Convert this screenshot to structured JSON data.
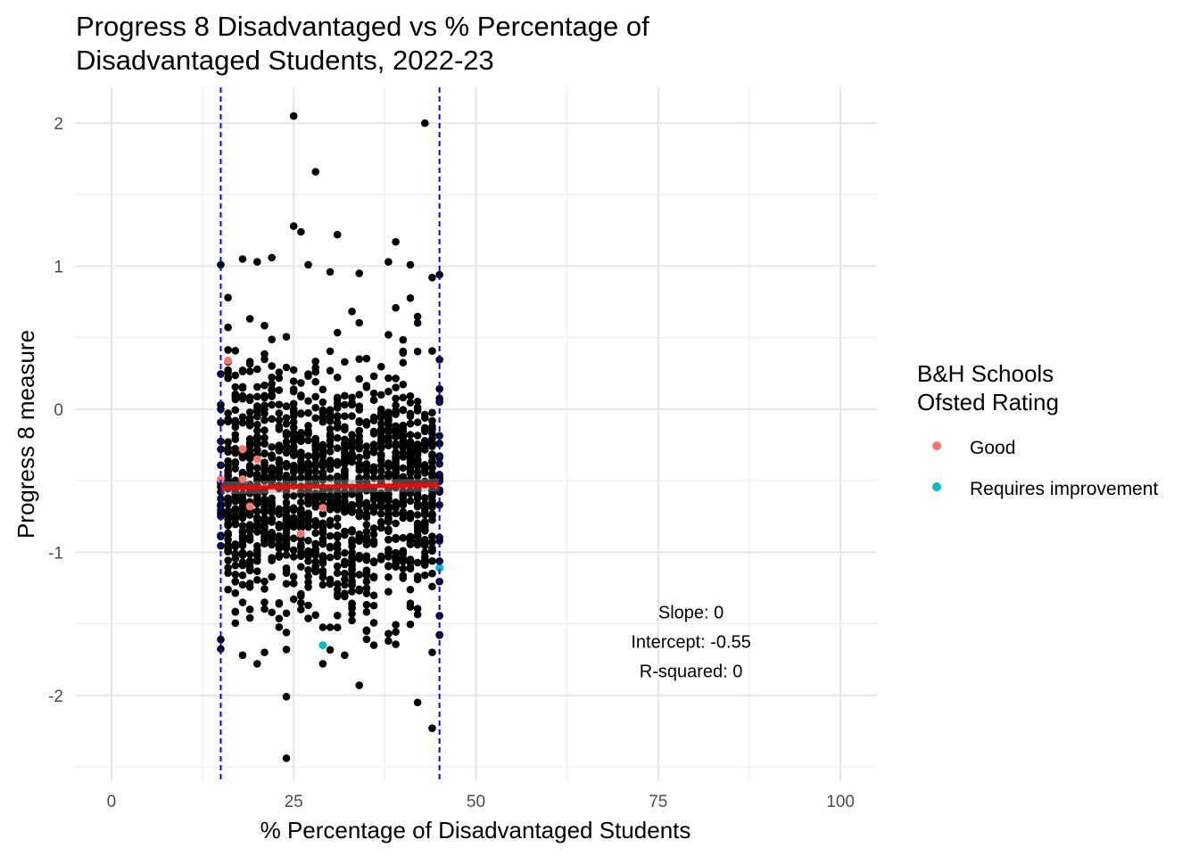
{
  "chart_data": {
    "type": "scatter",
    "title": [
      "Progress 8 Disadvantaged vs % Percentage of",
      "Disadvantaged Students, 2022-23"
    ],
    "xlabel": "% Percentage of Disadvantaged Students",
    "ylabel": "Progress 8 measure",
    "xlim": [
      -5,
      105
    ],
    "ylim": [
      -2.6,
      2.25
    ],
    "x_ticks": [
      0,
      25,
      50,
      75,
      100
    ],
    "y_ticks": [
      -2,
      -1,
      0,
      1,
      2
    ],
    "grid": true,
    "vlines": [
      15,
      45
    ],
    "vline_color": "#0000ff",
    "regression": {
      "x_start": 15,
      "x_end": 45,
      "y_start": -0.55,
      "y_end": -0.53,
      "color": "#ff0000"
    },
    "background_points": {
      "color": "#000000",
      "outliers": [
        [
          25,
          2.05
        ],
        [
          43,
          2.0
        ],
        [
          28,
          1.66
        ],
        [
          25,
          1.28
        ],
        [
          26,
          1.24
        ],
        [
          31,
          1.22
        ],
        [
          39,
          1.17
        ],
        [
          15,
          1.01
        ],
        [
          16,
          0.78
        ],
        [
          18,
          1.05
        ],
        [
          20,
          1.03
        ],
        [
          22,
          1.06
        ],
        [
          27,
          1.01
        ],
        [
          30,
          0.96
        ],
        [
          34,
          0.95
        ],
        [
          38,
          1.03
        ],
        [
          41,
          1.01
        ],
        [
          44,
          0.92
        ],
        [
          45,
          0.94
        ],
        [
          24,
          -2.01
        ],
        [
          24,
          -2.44
        ],
        [
          34,
          -1.93
        ],
        [
          42,
          -2.05
        ],
        [
          44,
          -2.23
        ],
        [
          29,
          -1.78
        ],
        [
          20,
          -1.78
        ],
        [
          18,
          -1.72
        ],
        [
          15,
          -1.61
        ],
        [
          45,
          -1.58
        ],
        [
          32,
          -1.72
        ],
        [
          36,
          -1.65
        ],
        [
          38,
          -1.62
        ]
      ],
      "bulk": {
        "count": 1450,
        "x_range": [
          15,
          45
        ],
        "y_mean": -0.55,
        "y_sd": 0.42,
        "y_range": [
          -1.7,
          0.92
        ]
      }
    },
    "series": [
      {
        "name": "Good",
        "color": "#f8766d",
        "points": [
          [
            16,
            0.34
          ],
          [
            15,
            -0.49
          ],
          [
            18,
            -0.28
          ],
          [
            20,
            -0.35
          ],
          [
            18,
            -0.49
          ],
          [
            19,
            -0.68
          ],
          [
            29,
            -0.69
          ],
          [
            26,
            -0.87
          ]
        ]
      },
      {
        "name": "Requires improvement",
        "color": "#00bfc4",
        "points": [
          [
            29,
            -1.65
          ],
          [
            45,
            -1.11
          ]
        ]
      }
    ],
    "legend": {
      "title": [
        "B&H Schools",
        "Ofsted Rating"
      ],
      "placement": "right"
    },
    "annotations": [
      "Slope: 0",
      "Intercept: -0.55",
      "R-squared: 0"
    ],
    "annotation_anchor": [
      79.5,
      -1.81
    ]
  }
}
